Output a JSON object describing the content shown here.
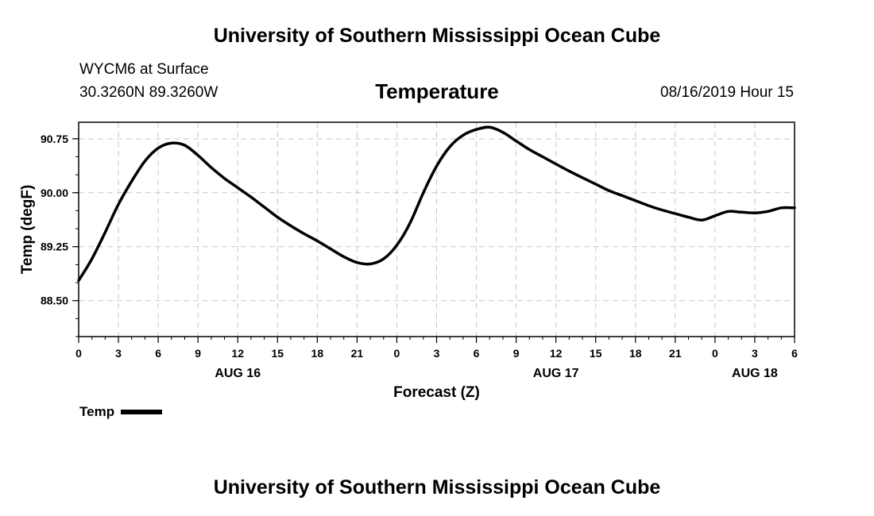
{
  "header": {
    "title": "University of Southern Mississippi Ocean Cube",
    "station": "WYCM6 at Surface",
    "coords": "30.3260N 89.3260W",
    "variable": "Temperature",
    "datetime": "08/16/2019 Hour 15",
    "footer_title": "University of Southern Mississippi Ocean Cube"
  },
  "chart_data": {
    "type": "line",
    "title": "Temperature",
    "xlabel": "Forecast (Z)",
    "ylabel": "Temp (degF)",
    "xlim": [
      0,
      54
    ],
    "ylim": [
      88.0,
      90.98
    ],
    "x_ticks": [
      0,
      3,
      6,
      9,
      12,
      15,
      18,
      21,
      24,
      27,
      30,
      33,
      36,
      39,
      42,
      45,
      48,
      51,
      54
    ],
    "x_tick_labels": [
      "0",
      "3",
      "6",
      "9",
      "12",
      "15",
      "18",
      "21",
      "0",
      "3",
      "6",
      "9",
      "12",
      "15",
      "18",
      "21",
      "0",
      "3",
      "6"
    ],
    "date_labels": [
      {
        "x": 12,
        "label": "AUG 16"
      },
      {
        "x": 36,
        "label": "AUG 17"
      },
      {
        "x": 51,
        "label": "AUG 18"
      }
    ],
    "y_ticks": [
      88.5,
      89.25,
      90.0,
      90.75
    ],
    "y_tick_labels": [
      "88.50",
      "89.25",
      "90.00",
      "90.75"
    ],
    "grid": true,
    "legend": "bottom-left",
    "series": [
      {
        "name": "Temp",
        "color": "#000000",
        "x": [
          0,
          1,
          2,
          3,
          4,
          5,
          6,
          7,
          8,
          9,
          10,
          11,
          12,
          13,
          14,
          15,
          16,
          17,
          18,
          19,
          20,
          21,
          22,
          23,
          24,
          25,
          26,
          27,
          28,
          29,
          30,
          31,
          32,
          33,
          34,
          35,
          36,
          37,
          38,
          39,
          40,
          41,
          42,
          43,
          44,
          45,
          46,
          47,
          48,
          49,
          50,
          51,
          52,
          53,
          54
        ],
        "values": [
          88.78,
          89.08,
          89.45,
          89.84,
          90.16,
          90.44,
          90.62,
          90.69,
          90.66,
          90.52,
          90.35,
          90.2,
          90.07,
          89.94,
          89.8,
          89.66,
          89.54,
          89.43,
          89.33,
          89.22,
          89.11,
          89.03,
          89.01,
          89.08,
          89.27,
          89.58,
          90.0,
          90.37,
          90.64,
          90.8,
          90.88,
          90.91,
          90.84,
          90.72,
          90.6,
          90.5,
          90.4,
          90.3,
          90.21,
          90.12,
          90.03,
          89.96,
          89.89,
          89.82,
          89.76,
          89.71,
          89.66,
          89.62,
          89.68,
          89.74,
          89.73,
          89.72,
          89.74,
          89.79,
          89.79
        ]
      }
    ]
  }
}
